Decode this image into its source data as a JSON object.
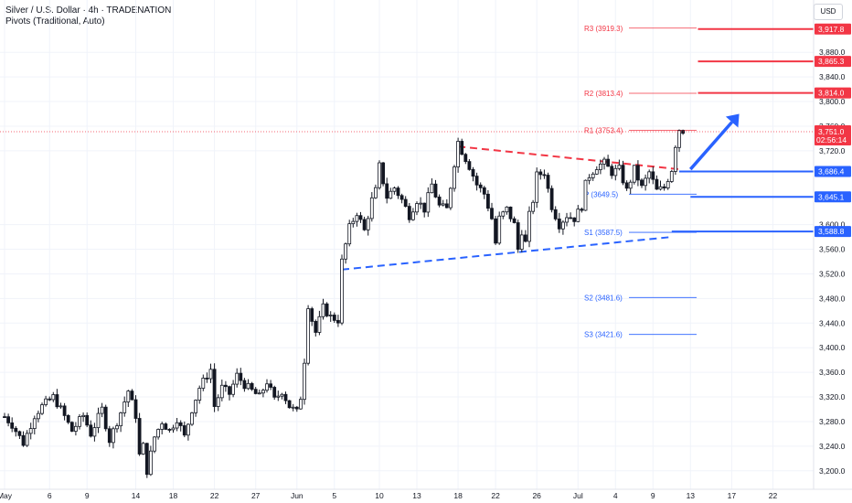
{
  "header": {
    "title": "Silver / U.S. Dollar · 4h · TRADENATION",
    "subtitle": "Pivots (Traditional, Auto)",
    "currency_button": "USD"
  },
  "colors": {
    "up": "#131722",
    "down": "#131722",
    "red": "#f23645",
    "blue": "#2962ff",
    "bull_body": "#ffffff",
    "bear_body": "#131722",
    "grid": "#f0f3fa"
  },
  "chart_data": {
    "type": "candlestick",
    "symbol": "Silver / U.S. Dollar",
    "interval": "4h",
    "ylim": [
      3170,
      3965
    ],
    "y_ticks": [
      "3,200.0",
      "3,240.0",
      "3,280.0",
      "3,320.0",
      "3,360.0",
      "3,400.0",
      "3,440.0",
      "3,480.0",
      "3,520.0",
      "3,560.0",
      "3,600.0",
      "3,720.0",
      "3,760.0",
      "3,800.0",
      "3,840.0",
      "3,880.0"
    ],
    "y_tick_values": [
      3200,
      3240,
      3280,
      3320,
      3360,
      3400,
      3440,
      3480,
      3520,
      3560,
      3600,
      3720,
      3760,
      3800,
      3840,
      3880
    ],
    "x_ticks": [
      "May",
      "6",
      "9",
      "14",
      "18",
      "22",
      "27",
      "Jun",
      "5",
      "10",
      "13",
      "18",
      "22",
      "26",
      "Jul",
      "4",
      "9",
      "13",
      "17",
      "22"
    ],
    "x_tick_index": [
      0,
      12,
      22,
      35,
      45,
      56,
      67,
      78,
      88,
      100,
      110,
      121,
      131,
      142,
      153,
      163,
      173,
      183,
      194,
      205
    ],
    "bars": 210,
    "anchors": [
      [
        0,
        3288
      ],
      [
        2,
        3275
      ],
      [
        5,
        3245
      ],
      [
        8,
        3290
      ],
      [
        10,
        3305
      ],
      [
        13,
        3320
      ],
      [
        15,
        3300
      ],
      [
        18,
        3265
      ],
      [
        21,
        3290
      ],
      [
        23,
        3260
      ],
      [
        26,
        3300
      ],
      [
        28,
        3250
      ],
      [
        31,
        3295
      ],
      [
        33,
        3330
      ],
      [
        35,
        3290
      ],
      [
        36,
        3225
      ],
      [
        37,
        3240
      ],
      [
        38,
        3200
      ],
      [
        40,
        3255
      ],
      [
        42,
        3280
      ],
      [
        44,
        3265
      ],
      [
        46,
        3285
      ],
      [
        48,
        3255
      ],
      [
        50,
        3300
      ],
      [
        52,
        3335
      ],
      [
        54,
        3355
      ],
      [
        55,
        3365
      ],
      [
        56,
        3305
      ],
      [
        58,
        3335
      ],
      [
        60,
        3325
      ],
      [
        62,
        3355
      ],
      [
        64,
        3340
      ],
      [
        66,
        3330
      ],
      [
        68,
        3320
      ],
      [
        70,
        3345
      ],
      [
        72,
        3315
      ],
      [
        74,
        3330
      ],
      [
        76,
        3305
      ],
      [
        78,
        3295
      ],
      [
        79,
        3320
      ],
      [
        80,
        3380
      ],
      [
        81,
        3470
      ],
      [
        82,
        3445
      ],
      [
        83,
        3425
      ],
      [
        85,
        3465
      ],
      [
        87,
        3450
      ],
      [
        89,
        3445
      ],
      [
        90,
        3540
      ],
      [
        92,
        3595
      ],
      [
        94,
        3620
      ],
      [
        96,
        3590
      ],
      [
        98,
        3640
      ],
      [
        99,
        3655
      ],
      [
        100,
        3695
      ],
      [
        101,
        3670
      ],
      [
        102,
        3645
      ],
      [
        104,
        3660
      ],
      [
        106,
        3640
      ],
      [
        108,
        3615
      ],
      [
        110,
        3640
      ],
      [
        112,
        3625
      ],
      [
        114,
        3665
      ],
      [
        116,
        3630
      ],
      [
        118,
        3625
      ],
      [
        120,
        3700
      ],
      [
        121,
        3735
      ],
      [
        122,
        3720
      ],
      [
        124,
        3695
      ],
      [
        126,
        3665
      ],
      [
        128,
        3650
      ],
      [
        130,
        3610
      ],
      [
        131,
        3570
      ],
      [
        132,
        3610
      ],
      [
        134,
        3625
      ],
      [
        136,
        3600
      ],
      [
        137,
        3560
      ],
      [
        138,
        3590
      ],
      [
        139,
        3570
      ],
      [
        140,
        3615
      ],
      [
        141,
        3640
      ],
      [
        142,
        3680
      ],
      [
        144,
        3685
      ],
      [
        146,
        3630
      ],
      [
        148,
        3600
      ],
      [
        150,
        3615
      ],
      [
        152,
        3610
      ],
      [
        154,
        3630
      ],
      [
        155,
        3665
      ],
      [
        156,
        3680
      ],
      [
        158,
        3695
      ],
      [
        160,
        3700
      ],
      [
        162,
        3685
      ],
      [
        164,
        3690
      ],
      [
        166,
        3655
      ],
      [
        168,
        3690
      ],
      [
        170,
        3660
      ],
      [
        172,
        3685
      ],
      [
        174,
        3655
      ],
      [
        176,
        3660
      ],
      [
        178,
        3690
      ],
      [
        179,
        3730
      ],
      [
        180,
        3755
      ],
      [
        181,
        3753
      ]
    ],
    "current_price": "3,751.0",
    "countdown": "02:56:14",
    "price_tags": [
      {
        "label": "3,917.8",
        "value": 3917.8,
        "color": "#f23645"
      },
      {
        "label": "3,865.3",
        "value": 3865.3,
        "color": "#f23645"
      },
      {
        "label": "3,814.0",
        "value": 3814.0,
        "color": "#f23645"
      },
      {
        "label": "3,686.4",
        "value": 3686.4,
        "color": "#2962ff"
      },
      {
        "label": "3,645.1",
        "value": 3645.1,
        "color": "#2962ff"
      },
      {
        "label": "3,588.8",
        "value": 3588.8,
        "color": "#2962ff"
      }
    ],
    "pivots": [
      {
        "label": "R3 (3919.3)",
        "value": 3919.3,
        "color": "#f23645"
      },
      {
        "label": "R2 (3813.4)",
        "value": 3813.4,
        "color": "#f23645"
      },
      {
        "label": "R1 (3753.4)",
        "value": 3753.4,
        "color": "#f23645"
      },
      {
        "label": "P (3649.5)",
        "value": 3649.5,
        "color": "#2962ff"
      },
      {
        "label": "S1 (3587.5)",
        "value": 3587.5,
        "color": "#2962ff"
      },
      {
        "label": "S2 (3481.6)",
        "value": 3481.6,
        "color": "#2962ff"
      },
      {
        "label": "S3 (3421.6)",
        "value": 3421.6,
        "color": "#2962ff"
      }
    ],
    "levels": [
      {
        "value": 3917.8,
        "color": "#f23645",
        "from_bar": 185
      },
      {
        "value": 3865.3,
        "color": "#f23645",
        "from_bar": 185
      },
      {
        "value": 3814.0,
        "color": "#f23645",
        "from_bar": 185
      },
      {
        "value": 3686.4,
        "color": "#2962ff",
        "from_bar": 180
      },
      {
        "value": 3645.1,
        "color": "#2962ff",
        "from_bar": 183
      },
      {
        "value": 3588.8,
        "color": "#2962ff",
        "from_bar": 178
      }
    ],
    "trendlines": [
      {
        "name": "resistance",
        "color": "#f23645",
        "from": [
          121,
          3727
        ],
        "to": [
          180,
          3690
        ]
      },
      {
        "name": "support",
        "color": "#2962ff",
        "from": [
          90,
          3527
        ],
        "to": [
          178,
          3580
        ]
      }
    ],
    "arrow": {
      "color": "#2962ff",
      "from": [
        183,
        3690
      ],
      "to": [
        196,
        3780
      ]
    },
    "grid": true
  }
}
